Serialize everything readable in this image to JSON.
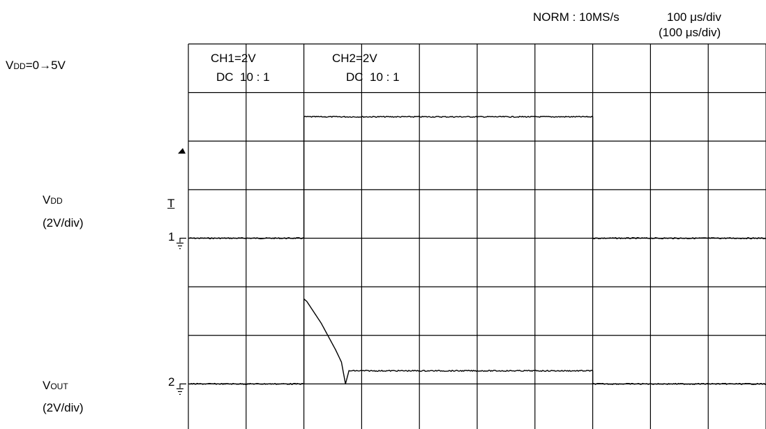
{
  "header": {
    "mode": "NORM : 10MS/s",
    "timebase": "100 μs/div",
    "timebase_alt": "(100 μs/div)"
  },
  "condition": {
    "prefix": "V",
    "sub": "DD",
    "suffix": "=0→5V"
  },
  "channels": [
    {
      "line1": "CH1=2V",
      "line2": "DC  10 : 1"
    },
    {
      "line1": "CH2=2V",
      "line2": "DC  10 : 1"
    }
  ],
  "trace_labels": [
    {
      "prefix": "V",
      "sub": "DD",
      "scale": "(2V/div)"
    },
    {
      "prefix": "V",
      "sub": "OUT",
      "scale": "(2V/div)"
    }
  ],
  "markers": {
    "trigger": "T",
    "ch1": "1",
    "ch2": "2"
  },
  "chart_data": {
    "type": "line",
    "x_unit": "div",
    "y_unit": "div",
    "xlim": [
      0,
      10
    ],
    "ylim": [
      -4,
      4
    ],
    "grid": true,
    "divisions": {
      "x": 10,
      "y": 8
    },
    "series": [
      {
        "channel": 1,
        "x": [
          0,
          2.0,
          2.0,
          7.0,
          7.0,
          10
        ],
        "y": [
          0,
          0,
          2.5,
          2.5,
          0,
          0
        ]
      },
      {
        "channel": 2,
        "x": [
          0,
          2.0,
          2.0,
          2.05,
          2.3,
          2.55,
          2.65,
          2.72,
          2.78,
          2.9,
          7.0,
          7.0,
          10
        ],
        "y": [
          0,
          0,
          1.75,
          1.7,
          1.25,
          0.7,
          0.45,
          0.0,
          0.27,
          0.27,
          0.27,
          0,
          0
        ]
      }
    ]
  }
}
